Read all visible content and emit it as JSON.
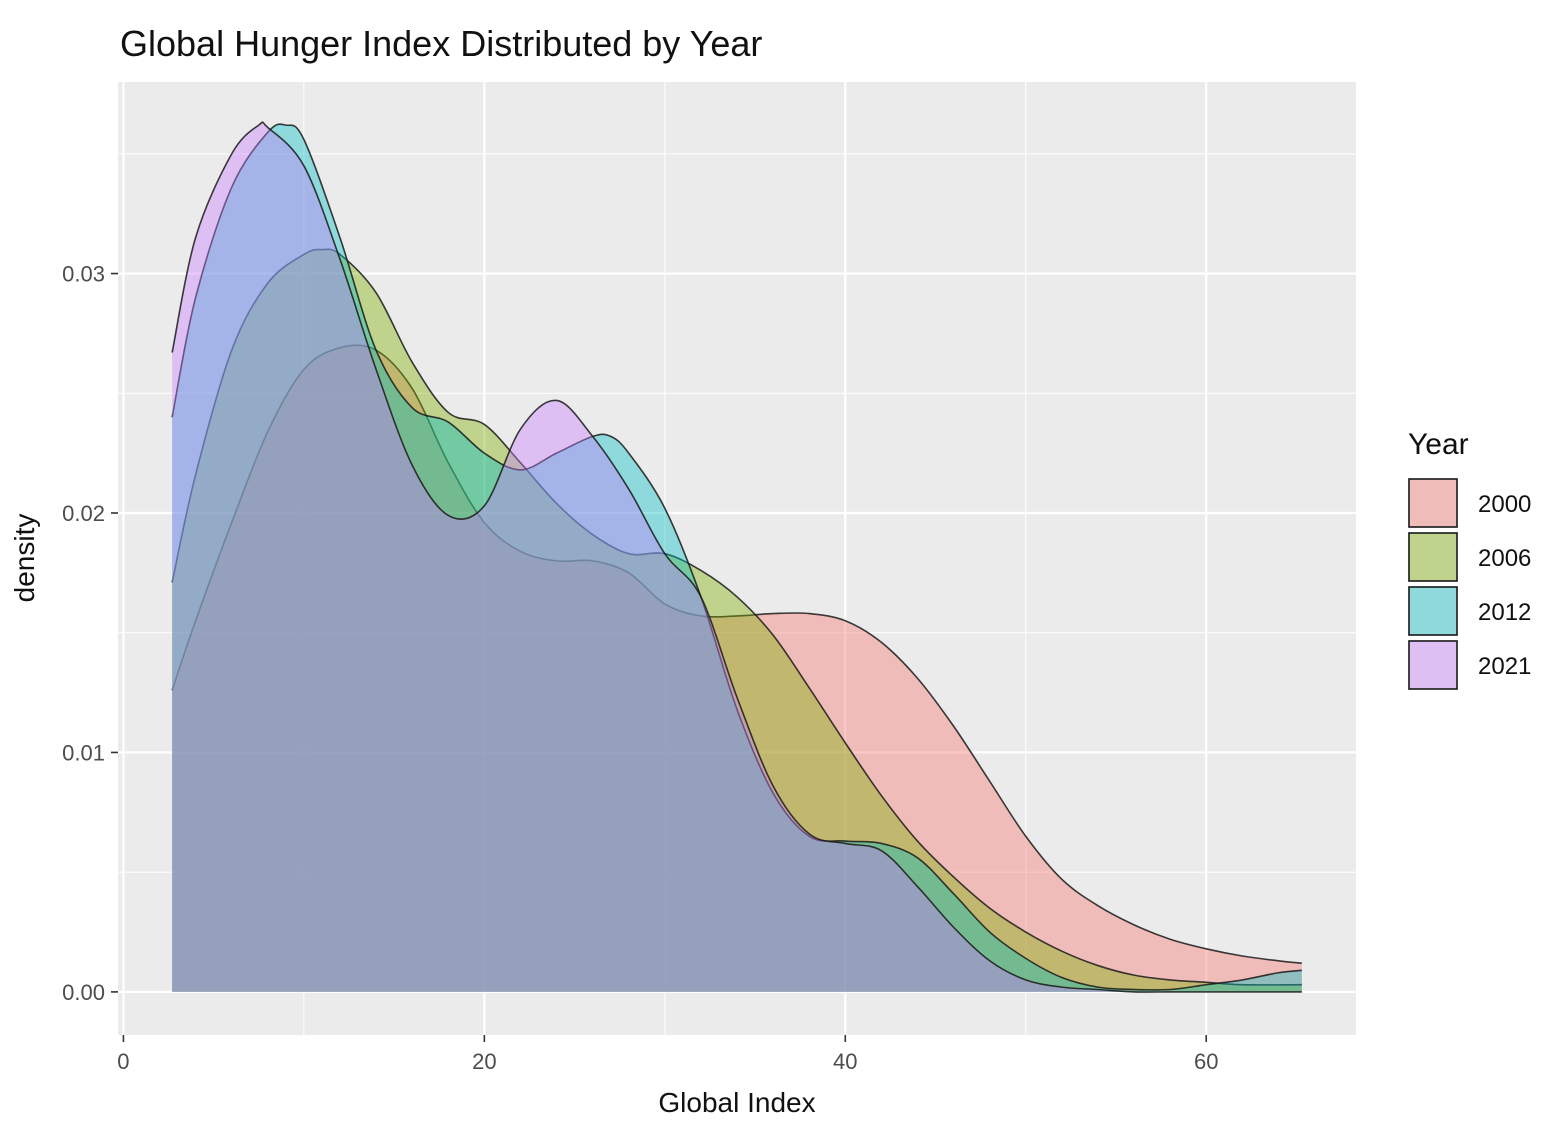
{
  "chart_data": {
    "type": "area",
    "title": "Global Hunger Index Distributed by Year",
    "xlabel": "Global Index",
    "ylabel": "density",
    "xlim": [
      -0.3,
      68.3
    ],
    "ylim": [
      -0.0018,
      0.038
    ],
    "x_ticks": [
      0,
      20,
      40,
      60
    ],
    "x_tick_labels": [
      "0",
      "20",
      "40",
      "60"
    ],
    "y_ticks": [
      0,
      0.01,
      0.02,
      0.03
    ],
    "y_tick_labels": [
      "0.00",
      "0.01",
      "0.02",
      "0.03"
    ],
    "grid": true,
    "legend": {
      "title": "Year",
      "position": "right"
    },
    "series": [
      {
        "name": "2000",
        "color": "#f8766d",
        "points": [
          [
            2.7,
            0.0126
          ],
          [
            4,
            0.0155
          ],
          [
            6,
            0.0196
          ],
          [
            8,
            0.0234
          ],
          [
            10,
            0.026
          ],
          [
            12,
            0.0269
          ],
          [
            14,
            0.0268
          ],
          [
            16,
            0.0252
          ],
          [
            18,
            0.0221
          ],
          [
            20,
            0.0196
          ],
          [
            22,
            0.0184
          ],
          [
            24,
            0.018
          ],
          [
            26,
            0.018
          ],
          [
            28,
            0.0175
          ],
          [
            30,
            0.0162
          ],
          [
            32,
            0.0157
          ],
          [
            34,
            0.0157
          ],
          [
            36,
            0.0158
          ],
          [
            38,
            0.0158
          ],
          [
            40,
            0.0155
          ],
          [
            42,
            0.0146
          ],
          [
            44,
            0.0131
          ],
          [
            46,
            0.0111
          ],
          [
            48,
            0.0088
          ],
          [
            50,
            0.0065
          ],
          [
            52,
            0.0047
          ],
          [
            54,
            0.0036
          ],
          [
            56,
            0.0028
          ],
          [
            58,
            0.0022
          ],
          [
            60,
            0.0018
          ],
          [
            62,
            0.0015
          ],
          [
            64,
            0.0013
          ],
          [
            65.3,
            0.0012
          ]
        ]
      },
      {
        "name": "2006",
        "color": "#7cae00",
        "points": [
          [
            2.7,
            0.0171
          ],
          [
            4,
            0.0216
          ],
          [
            6,
            0.0268
          ],
          [
            8,
            0.0296
          ],
          [
            10,
            0.0308
          ],
          [
            11,
            0.031
          ],
          [
            12,
            0.0308
          ],
          [
            14,
            0.0292
          ],
          [
            16,
            0.0263
          ],
          [
            18,
            0.0242
          ],
          [
            20,
            0.0237
          ],
          [
            22,
            0.0221
          ],
          [
            24,
            0.0204
          ],
          [
            26,
            0.0191
          ],
          [
            28,
            0.0183
          ],
          [
            30,
            0.0183
          ],
          [
            32,
            0.0176
          ],
          [
            34,
            0.0165
          ],
          [
            36,
            0.0149
          ],
          [
            38,
            0.0127
          ],
          [
            40,
            0.0104
          ],
          [
            42,
            0.0082
          ],
          [
            44,
            0.0063
          ],
          [
            46,
            0.0048
          ],
          [
            48,
            0.0035
          ],
          [
            50,
            0.0025
          ],
          [
            52,
            0.0017
          ],
          [
            54,
            0.0011
          ],
          [
            56,
            0.0007
          ],
          [
            58,
            0.0005
          ],
          [
            60,
            0.0004
          ],
          [
            62,
            0.0003
          ],
          [
            65.3,
            0.0003
          ]
        ]
      },
      {
        "name": "2012",
        "color": "#00bfc4",
        "points": [
          [
            2.7,
            0.024
          ],
          [
            4,
            0.029
          ],
          [
            6,
            0.0336
          ],
          [
            8,
            0.0359
          ],
          [
            9,
            0.0362
          ],
          [
            10,
            0.0356
          ],
          [
            12,
            0.0315
          ],
          [
            14,
            0.0268
          ],
          [
            16,
            0.0244
          ],
          [
            18,
            0.0238
          ],
          [
            20,
            0.0225
          ],
          [
            22,
            0.0218
          ],
          [
            24,
            0.0225
          ],
          [
            26,
            0.0232
          ],
          [
            27,
            0.0232
          ],
          [
            28,
            0.0225
          ],
          [
            30,
            0.0202
          ],
          [
            32,
            0.0165
          ],
          [
            34,
            0.0118
          ],
          [
            36,
            0.0083
          ],
          [
            38,
            0.0065
          ],
          [
            40,
            0.0063
          ],
          [
            42,
            0.0062
          ],
          [
            44,
            0.0056
          ],
          [
            46,
            0.0041
          ],
          [
            48,
            0.0025
          ],
          [
            50,
            0.0014
          ],
          [
            52,
            0.0006
          ],
          [
            54,
            0.0002
          ],
          [
            56,
            0.0001
          ],
          [
            58,
            0.0001
          ],
          [
            60,
            0.0003
          ],
          [
            62,
            0.0005
          ],
          [
            64,
            0.0008
          ],
          [
            65.3,
            0.0009
          ]
        ]
      },
      {
        "name": "2021",
        "color": "#c77cff",
        "points": [
          [
            2.7,
            0.0267
          ],
          [
            4,
            0.0315
          ],
          [
            6,
            0.035
          ],
          [
            7.5,
            0.0362
          ],
          [
            8,
            0.0361
          ],
          [
            10,
            0.0345
          ],
          [
            12,
            0.0306
          ],
          [
            14,
            0.026
          ],
          [
            16,
            0.022
          ],
          [
            18,
            0.0199
          ],
          [
            20,
            0.0203
          ],
          [
            22,
            0.0235
          ],
          [
            24,
            0.0247
          ],
          [
            26,
            0.0232
          ],
          [
            28,
            0.021
          ],
          [
            30,
            0.0183
          ],
          [
            32,
            0.0165
          ],
          [
            34,
            0.0123
          ],
          [
            36,
            0.0086
          ],
          [
            38,
            0.0066
          ],
          [
            40,
            0.0062
          ],
          [
            42,
            0.0059
          ],
          [
            44,
            0.0044
          ],
          [
            46,
            0.0027
          ],
          [
            48,
            0.0013
          ],
          [
            50,
            0.0005
          ],
          [
            52,
            0.0002
          ],
          [
            54,
            0.0001
          ],
          [
            56,
            0.0
          ],
          [
            58,
            0.0
          ],
          [
            60,
            0.0
          ],
          [
            62,
            0.0
          ],
          [
            65.3,
            0.0
          ]
        ]
      }
    ]
  }
}
